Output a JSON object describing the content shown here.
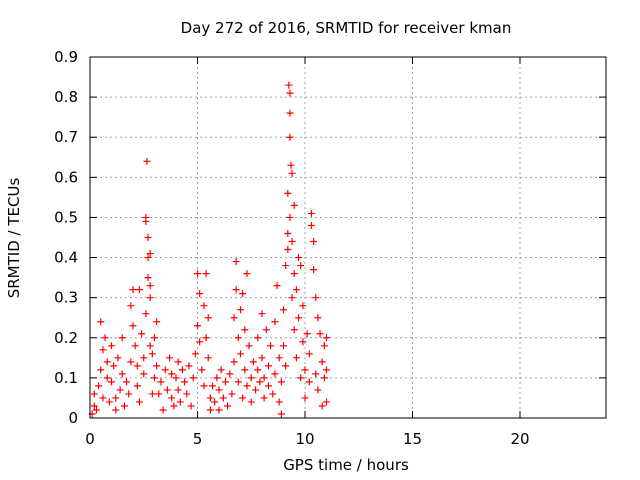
{
  "chart_data": {
    "type": "scatter",
    "title": "Day 272 of 2016, SRMTID for receiver kman",
    "xlabel": "GPS time / hours",
    "ylabel": "SRMTID / TECUs",
    "xlim": [
      0,
      24
    ],
    "ylim": [
      0,
      0.9
    ],
    "xticks": [
      0,
      5,
      10,
      15,
      20
    ],
    "xtick_labels": [
      "0",
      "5",
      "10",
      "15",
      "20"
    ],
    "yticks": [
      0,
      0.1,
      0.2,
      0.3,
      0.4,
      0.5,
      0.6,
      0.7,
      0.8,
      0.9
    ],
    "ytick_labels": [
      "0",
      "0.1",
      "0.2",
      "0.3",
      "0.4",
      "0.5",
      "0.6",
      "0.7",
      "0.8",
      "0.9"
    ],
    "grid": true,
    "marker": "+",
    "color": "#ff0000",
    "series": [
      {
        "name": "SRMTID",
        "points": [
          [
            0.1,
            0.01
          ],
          [
            0.2,
            0.03
          ],
          [
            0.2,
            0.06
          ],
          [
            0.3,
            0.02
          ],
          [
            0.4,
            0.08
          ],
          [
            0.5,
            0.12
          ],
          [
            0.5,
            0.24
          ],
          [
            0.6,
            0.17
          ],
          [
            0.6,
            0.05
          ],
          [
            0.7,
            0.2
          ],
          [
            0.8,
            0.1
          ],
          [
            0.8,
            0.14
          ],
          [
            0.9,
            0.04
          ],
          [
            1.0,
            0.18
          ],
          [
            1.0,
            0.09
          ],
          [
            1.1,
            0.13
          ],
          [
            1.2,
            0.05
          ],
          [
            1.2,
            0.02
          ],
          [
            1.3,
            0.15
          ],
          [
            1.4,
            0.07
          ],
          [
            1.5,
            0.2
          ],
          [
            1.5,
            0.11
          ],
          [
            1.6,
            0.03
          ],
          [
            1.7,
            0.09
          ],
          [
            1.8,
            0.06
          ],
          [
            1.9,
            0.28
          ],
          [
            1.9,
            0.14
          ],
          [
            2.0,
            0.32
          ],
          [
            2.0,
            0.23
          ],
          [
            2.1,
            0.18
          ],
          [
            2.2,
            0.13
          ],
          [
            2.2,
            0.08
          ],
          [
            2.3,
            0.32
          ],
          [
            2.3,
            0.04
          ],
          [
            2.4,
            0.21
          ],
          [
            2.5,
            0.11
          ],
          [
            2.5,
            0.15
          ],
          [
            2.6,
            0.49
          ],
          [
            2.6,
            0.5
          ],
          [
            2.6,
            0.26
          ],
          [
            2.65,
            0.64
          ],
          [
            2.7,
            0.45
          ],
          [
            2.7,
            0.4
          ],
          [
            2.7,
            0.35
          ],
          [
            2.8,
            0.41
          ],
          [
            2.8,
            0.33
          ],
          [
            2.8,
            0.3
          ],
          [
            2.8,
            0.18
          ],
          [
            2.9,
            0.16
          ],
          [
            2.9,
            0.06
          ],
          [
            3.0,
            0.2
          ],
          [
            3.0,
            0.1
          ],
          [
            3.1,
            0.24
          ],
          [
            3.1,
            0.13
          ],
          [
            3.2,
            0.06
          ],
          [
            3.3,
            0.09
          ],
          [
            3.4,
            0.02
          ],
          [
            3.5,
            0.12
          ],
          [
            3.6,
            0.07
          ],
          [
            3.7,
            0.15
          ],
          [
            3.8,
            0.05
          ],
          [
            3.8,
            0.11
          ],
          [
            3.9,
            0.03
          ],
          [
            4.0,
            0.1
          ],
          [
            4.1,
            0.14
          ],
          [
            4.1,
            0.07
          ],
          [
            4.2,
            0.04
          ],
          [
            4.3,
            0.12
          ],
          [
            4.4,
            0.09
          ],
          [
            4.5,
            0.06
          ],
          [
            4.6,
            0.13
          ],
          [
            4.7,
            0.03
          ],
          [
            4.8,
            0.1
          ],
          [
            4.9,
            0.16
          ],
          [
            5.0,
            0.36
          ],
          [
            5.0,
            0.23
          ],
          [
            5.1,
            0.31
          ],
          [
            5.1,
            0.19
          ],
          [
            5.2,
            0.12
          ],
          [
            5.3,
            0.28
          ],
          [
            5.3,
            0.08
          ],
          [
            5.4,
            0.36
          ],
          [
            5.4,
            0.2
          ],
          [
            5.5,
            0.25
          ],
          [
            5.5,
            0.15
          ],
          [
            5.6,
            0.05
          ],
          [
            5.6,
            0.02
          ],
          [
            5.7,
            0.08
          ],
          [
            5.8,
            0.04
          ],
          [
            5.9,
            0.1
          ],
          [
            6.0,
            0.07
          ],
          [
            6.0,
            0.02
          ],
          [
            6.1,
            0.12
          ],
          [
            6.2,
            0.05
          ],
          [
            6.3,
            0.09
          ],
          [
            6.4,
            0.03
          ],
          [
            6.5,
            0.11
          ],
          [
            6.6,
            0.06
          ],
          [
            6.7,
            0.14
          ],
          [
            6.7,
            0.25
          ],
          [
            6.8,
            0.39
          ],
          [
            6.8,
            0.32
          ],
          [
            6.9,
            0.2
          ],
          [
            6.9,
            0.09
          ],
          [
            7.0,
            0.27
          ],
          [
            7.0,
            0.16
          ],
          [
            7.1,
            0.31
          ],
          [
            7.1,
            0.05
          ],
          [
            7.2,
            0.22
          ],
          [
            7.2,
            0.12
          ],
          [
            7.3,
            0.36
          ],
          [
            7.3,
            0.08
          ],
          [
            7.4,
            0.18
          ],
          [
            7.5,
            0.1
          ],
          [
            7.5,
            0.04
          ],
          [
            7.6,
            0.14
          ],
          [
            7.7,
            0.07
          ],
          [
            7.8,
            0.2
          ],
          [
            7.8,
            0.12
          ],
          [
            7.9,
            0.09
          ],
          [
            8.0,
            0.26
          ],
          [
            8.0,
            0.15
          ],
          [
            8.1,
            0.05
          ],
          [
            8.1,
            0.1
          ],
          [
            8.2,
            0.22
          ],
          [
            8.3,
            0.13
          ],
          [
            8.3,
            0.08
          ],
          [
            8.4,
            0.18
          ],
          [
            8.5,
            0.06
          ],
          [
            8.6,
            0.24
          ],
          [
            8.6,
            0.11
          ],
          [
            8.7,
            0.33
          ],
          [
            8.8,
            0.15
          ],
          [
            8.8,
            0.04
          ],
          [
            8.9,
            0.09
          ],
          [
            8.9,
            0.01
          ],
          [
            9.0,
            0.27
          ],
          [
            9.0,
            0.18
          ],
          [
            9.1,
            0.38
          ],
          [
            9.1,
            0.13
          ],
          [
            9.2,
            0.56
          ],
          [
            9.2,
            0.46
          ],
          [
            9.2,
            0.42
          ],
          [
            9.25,
            0.83
          ],
          [
            9.3,
            0.81
          ],
          [
            9.3,
            0.76
          ],
          [
            9.3,
            0.7
          ],
          [
            9.3,
            0.5
          ],
          [
            9.35,
            0.63
          ],
          [
            9.4,
            0.61
          ],
          [
            9.4,
            0.44
          ],
          [
            9.4,
            0.3
          ],
          [
            9.5,
            0.53
          ],
          [
            9.5,
            0.36
          ],
          [
            9.5,
            0.22
          ],
          [
            9.6,
            0.32
          ],
          [
            9.6,
            0.15
          ],
          [
            9.7,
            0.4
          ],
          [
            9.7,
            0.25
          ],
          [
            9.8,
            0.38
          ],
          [
            9.8,
            0.1
          ],
          [
            9.9,
            0.28
          ],
          [
            9.9,
            0.19
          ],
          [
            10.0,
            0.12
          ],
          [
            10.0,
            0.05
          ],
          [
            10.1,
            0.21
          ],
          [
            10.2,
            0.09
          ],
          [
            10.2,
            0.16
          ],
          [
            10.3,
            0.51
          ],
          [
            10.3,
            0.48
          ],
          [
            10.4,
            0.44
          ],
          [
            10.4,
            0.37
          ],
          [
            10.5,
            0.3
          ],
          [
            10.5,
            0.11
          ],
          [
            10.6,
            0.25
          ],
          [
            10.6,
            0.07
          ],
          [
            10.7,
            0.21
          ],
          [
            10.8,
            0.14
          ],
          [
            10.8,
            0.03
          ],
          [
            10.9,
            0.18
          ],
          [
            10.9,
            0.1
          ],
          [
            11.0,
            0.2
          ],
          [
            11.0,
            0.04
          ],
          [
            11.0,
            0.12
          ]
        ]
      }
    ]
  }
}
